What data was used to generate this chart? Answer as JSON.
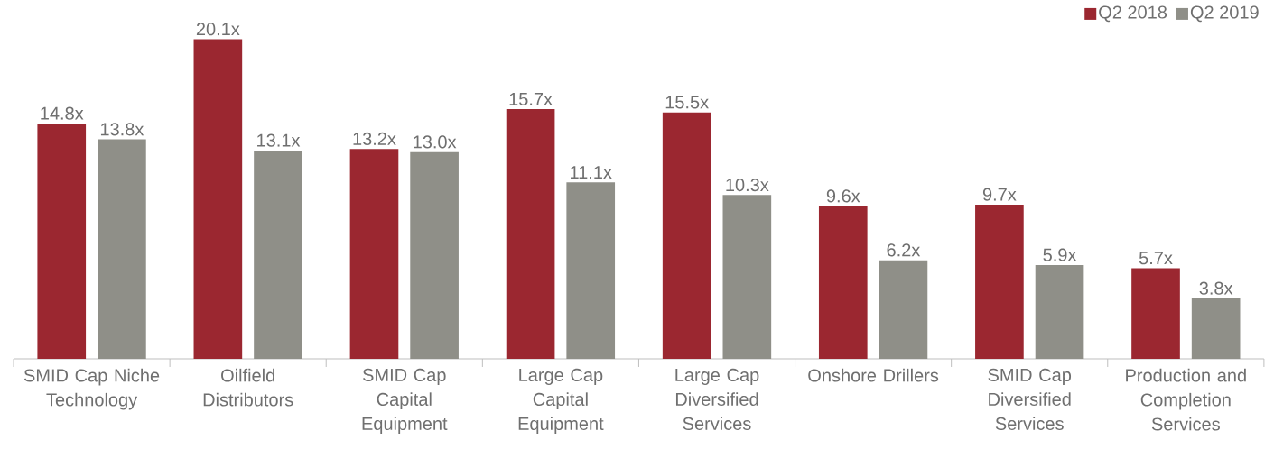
{
  "chart_data": {
    "type": "bar",
    "categories": [
      "SMID Cap Niche Technology",
      "Oilfield Distributors",
      "SMID Cap Capital Equipment",
      "Large Cap Capital Equipment",
      "Large Cap Diversified Services",
      "Onshore Drillers",
      "SMID Cap Diversified Services",
      "Production and Completion Services"
    ],
    "series": [
      {
        "name": "Q2 2018",
        "color": "#9b2730",
        "values": [
          14.8,
          20.1,
          13.2,
          15.7,
          15.5,
          9.6,
          9.7,
          5.7
        ],
        "value_labels": [
          "14.8x",
          "20.1x",
          "13.2x",
          "15.7x",
          "15.5x",
          "9.6x",
          "9.7x",
          "5.7x"
        ]
      },
      {
        "name": "Q2 2019",
        "color": "#8f8f88",
        "values": [
          13.8,
          13.1,
          13.0,
          11.1,
          10.3,
          6.2,
          5.9,
          3.8
        ],
        "value_labels": [
          "13.8x",
          "13.1x",
          "13.0x",
          "11.1x",
          "10.3x",
          "6.2x",
          "5.9x",
          "3.8x"
        ]
      }
    ],
    "ylim": [
      0,
      22
    ],
    "legend": "top right",
    "tick_labels": "x"
  }
}
